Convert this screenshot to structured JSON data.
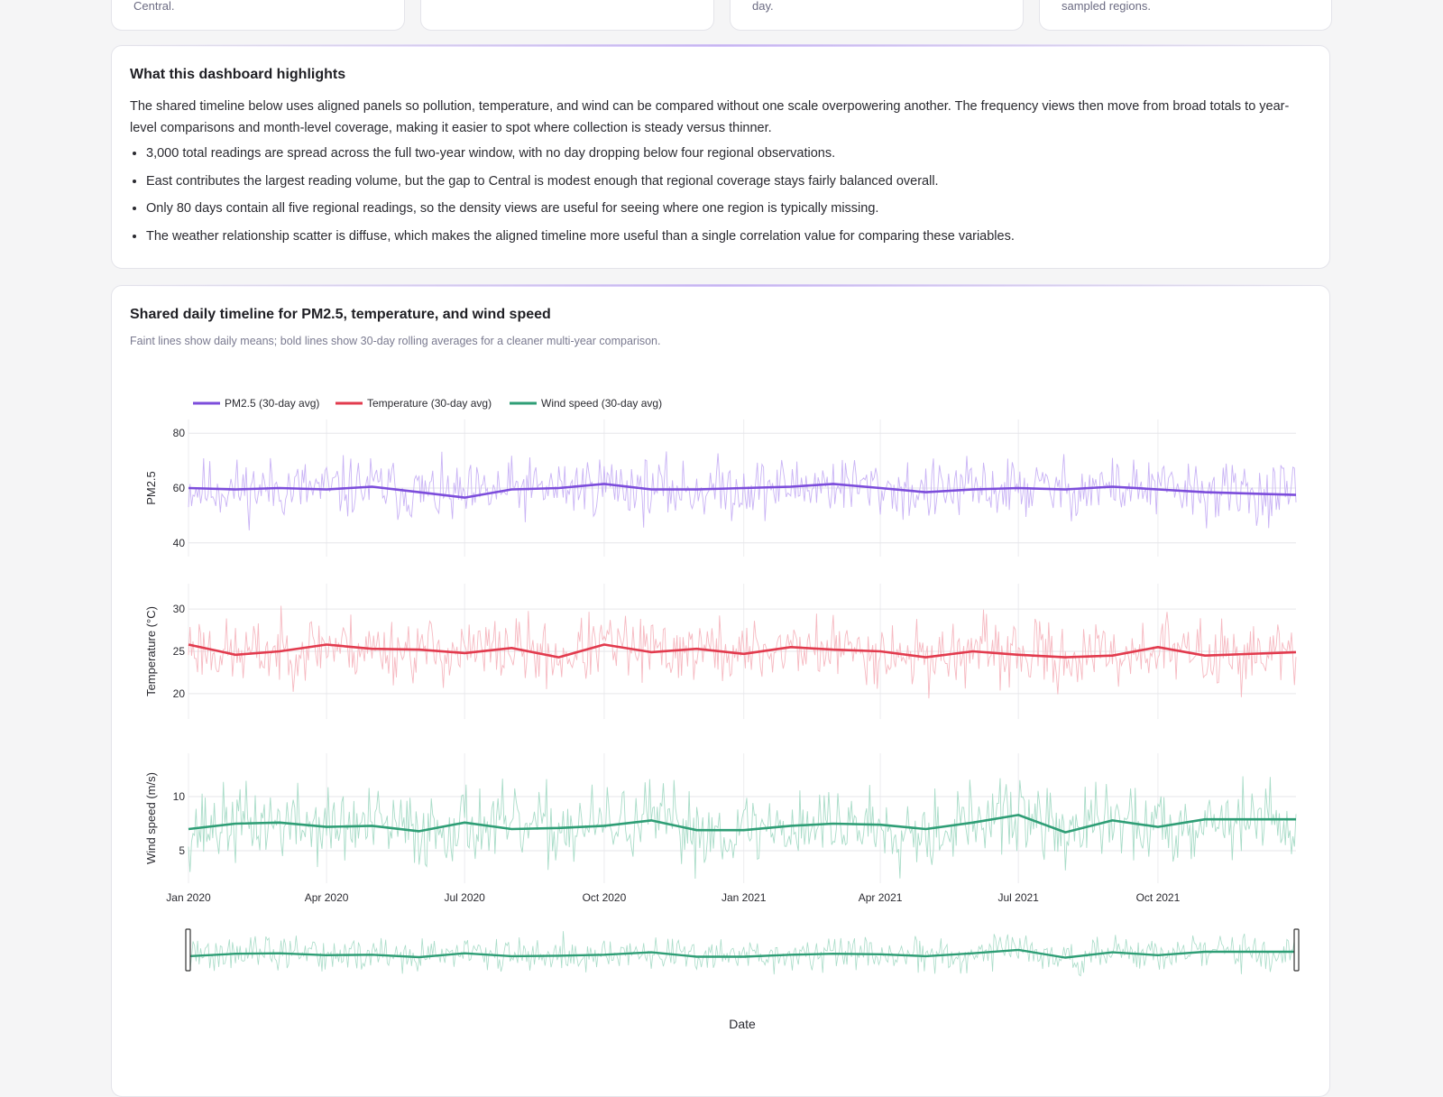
{
  "top_cards": [
    {
      "fragment": "Central."
    },
    {
      "fragment": ""
    },
    {
      "fragment": "day."
    },
    {
      "fragment": "sampled regions."
    }
  ],
  "highlights": {
    "title": "What this dashboard highlights",
    "intro": "The shared timeline below uses aligned panels so pollution, temperature, and wind can be compared without one scale overpowering another. The frequency views then move from broad totals to year-level comparisons and month-level coverage, making it easier to spot where collection is steady versus thinner.",
    "bullets": [
      "3,000 total readings are spread across the full two-year window, with no day dropping below four regional observations.",
      "East contributes the largest reading volume, but the gap to Central is modest enough that regional coverage stays fairly balanced overall.",
      "Only 80 days contain all five regional readings, so the density views are useful for seeing where one region is typically missing.",
      "The weather relationship scatter is diffuse, which makes the aligned timeline more useful than a single correlation value for comparing these variables."
    ]
  },
  "timeline_card": {
    "title": "Shared daily timeline for PM2.5, temperature, and wind speed",
    "subtitle": "Faint lines show daily means; bold lines show 30-day rolling averages for a cleaner multi-year comparison."
  },
  "chart_data": {
    "type": "line",
    "x_range": [
      "2020-01-01",
      "2021-12-31"
    ],
    "x_ticks": [
      "Jan 2020",
      "Apr 2020",
      "Jul 2020",
      "Oct 2020",
      "Jan 2021",
      "Apr 2021",
      "Jul 2021",
      "Oct 2021"
    ],
    "x_tick_dates": [
      "2020-01-01",
      "2020-04-01",
      "2020-07-01",
      "2020-10-01",
      "2021-01-01",
      "2021-04-01",
      "2021-07-01",
      "2021-10-01"
    ],
    "xlabel": "Date",
    "legend_position": "top-left",
    "grid": true,
    "range_slider": true,
    "panels": [
      {
        "ylabel": "PM2.5",
        "ylim": [
          35,
          85
        ],
        "yticks": [
          "80",
          "60",
          "40"
        ],
        "color": "#7c4ddb",
        "faint_color": "#c9b3f5",
        "series": [
          {
            "name": "PM2.5 (30-day avg)",
            "style": "bold",
            "x": [
              "2020-01-01",
              "2020-02-01",
              "2020-03-01",
              "2020-04-01",
              "2020-05-01",
              "2020-06-01",
              "2020-07-01",
              "2020-08-01",
              "2020-09-01",
              "2020-10-01",
              "2020-11-01",
              "2020-12-01",
              "2021-01-01",
              "2021-02-01",
              "2021-03-01",
              "2021-04-01",
              "2021-05-01",
              "2021-06-01",
              "2021-07-01",
              "2021-08-01",
              "2021-09-01",
              "2021-10-01",
              "2021-11-01",
              "2021-12-31"
            ],
            "y": [
              60,
              59.5,
              60,
              59.5,
              60.5,
              58.5,
              56.5,
              59.5,
              60,
              61.5,
              59.5,
              59.5,
              60,
              60.5,
              61.5,
              60,
              58.5,
              59.5,
              60,
              59.5,
              60.5,
              59.5,
              58.5,
              57.5
            ]
          },
          {
            "name": "PM2.5 (daily mean)",
            "style": "faint",
            "mean": 59.5,
            "spread": 10,
            "seed": 11
          }
        ]
      },
      {
        "ylabel": "Temperature (°C)",
        "ylim": [
          17,
          33
        ],
        "yticks": [
          "30",
          "25",
          "20"
        ],
        "color": "#e23b4e",
        "faint_color": "#f6b9c1",
        "series": [
          {
            "name": "Temperature (30-day avg)",
            "style": "bold",
            "x": [
              "2020-01-01",
              "2020-02-01",
              "2020-03-01",
              "2020-04-01",
              "2020-05-01",
              "2020-06-01",
              "2020-07-01",
              "2020-08-01",
              "2020-09-01",
              "2020-10-01",
              "2020-11-01",
              "2020-12-01",
              "2021-01-01",
              "2021-02-01",
              "2021-03-01",
              "2021-04-01",
              "2021-05-01",
              "2021-06-01",
              "2021-07-01",
              "2021-08-01",
              "2021-09-01",
              "2021-10-01",
              "2021-11-01",
              "2021-12-31"
            ],
            "y": [
              25.8,
              24.6,
              25.0,
              25.8,
              25.3,
              25.2,
              24.8,
              25.4,
              24.3,
              25.8,
              24.9,
              25.3,
              24.7,
              25.5,
              25.2,
              25.0,
              24.3,
              25.0,
              24.6,
              24.3,
              24.5,
              25.5,
              24.5,
              24.9
            ]
          },
          {
            "name": "Temperature (daily mean)",
            "style": "faint",
            "mean": 25,
            "spread": 3.5,
            "seed": 23
          }
        ]
      },
      {
        "ylabel": "Wind speed (m/s)",
        "ylim": [
          2,
          14
        ],
        "yticks": [
          "10",
          "5"
        ],
        "color": "#2f9e76",
        "faint_color": "#a9dcc8",
        "series": [
          {
            "name": "Wind speed (30-day avg)",
            "style": "bold",
            "x": [
              "2020-01-01",
              "2020-02-01",
              "2020-03-01",
              "2020-04-01",
              "2020-05-01",
              "2020-06-01",
              "2020-07-01",
              "2020-08-01",
              "2020-09-01",
              "2020-10-01",
              "2020-11-01",
              "2020-12-01",
              "2021-01-01",
              "2021-02-01",
              "2021-03-01",
              "2021-04-01",
              "2021-05-01",
              "2021-06-01",
              "2021-07-01",
              "2021-08-01",
              "2021-09-01",
              "2021-10-01",
              "2021-11-01",
              "2021-12-31"
            ],
            "y": [
              7.0,
              7.5,
              7.6,
              7.2,
              7.3,
              6.8,
              7.6,
              7.0,
              7.1,
              7.3,
              7.8,
              6.9,
              6.9,
              7.3,
              7.5,
              7.4,
              7.0,
              7.6,
              8.3,
              6.7,
              7.8,
              7.2,
              7.9,
              7.9
            ]
          },
          {
            "name": "Wind speed (daily mean)",
            "style": "faint",
            "mean": 7.3,
            "spread": 3.2,
            "seed": 37
          }
        ]
      }
    ]
  }
}
